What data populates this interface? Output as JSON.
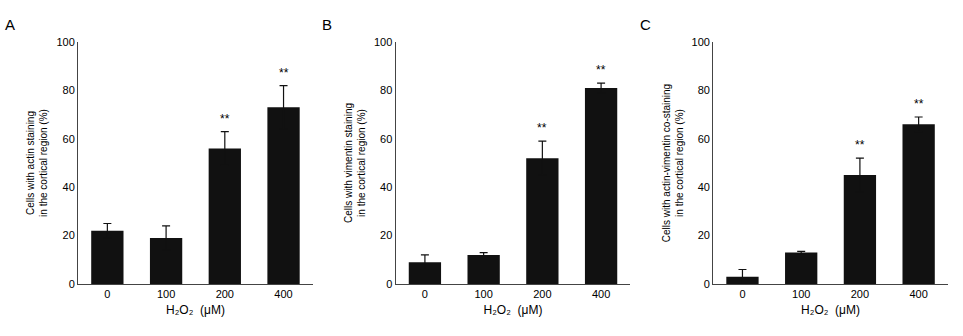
{
  "chart_data": [
    {
      "type": "bar",
      "title": "A",
      "xlabel": "H₂O₂  (μM)",
      "ylabel": "Cells with actin staining\nin the cortical region (%)",
      "categories": [
        "0",
        "100",
        "200",
        "400"
      ],
      "values": [
        22,
        19,
        56,
        73
      ],
      "errors": [
        3,
        5,
        7,
        9
      ],
      "color": "#111111",
      "annotations": [
        {
          "x": "200",
          "text": "**"
        },
        {
          "x": "400",
          "text": "**"
        }
      ],
      "ylim": [
        0,
        100
      ],
      "yticks": [
        0,
        20,
        40,
        60,
        80,
        100
      ],
      "grid": false
    },
    {
      "type": "bar",
      "title": "B",
      "xlabel": "H₂O₂  (μM)",
      "ylabel": "Cells with vimentin staining\nin the cortical region (%)",
      "categories": [
        "0",
        "100",
        "200",
        "400"
      ],
      "values": [
        9,
        12,
        52,
        81
      ],
      "errors": [
        3,
        1,
        7,
        2
      ],
      "color": "#111111",
      "annotations": [
        {
          "x": "200",
          "text": "**"
        },
        {
          "x": "400",
          "text": "**"
        }
      ],
      "ylim": [
        0,
        100
      ],
      "yticks": [
        0,
        20,
        40,
        60,
        80,
        100
      ],
      "grid": false
    },
    {
      "type": "bar",
      "title": "C",
      "xlabel": "H₂O₂  (μM)",
      "ylabel": "Cells with actin-vimentin co-staining\nin the cortical region (%)",
      "categories": [
        "0",
        "100",
        "200",
        "400"
      ],
      "values": [
        3,
        13,
        45,
        66
      ],
      "errors": [
        3,
        0.5,
        7,
        3
      ],
      "color": "#111111",
      "annotations": [
        {
          "x": "200",
          "text": "**"
        },
        {
          "x": "400",
          "text": "**"
        }
      ],
      "ylim": [
        0,
        100
      ],
      "yticks": [
        0,
        20,
        40,
        60,
        80,
        100
      ],
      "grid": false
    }
  ]
}
